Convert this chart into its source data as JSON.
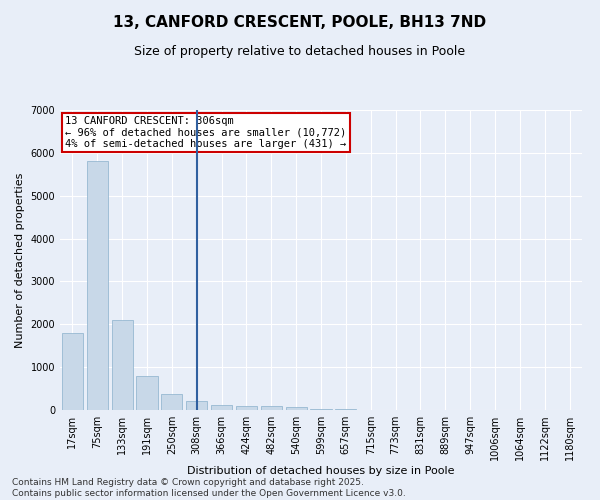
{
  "title": "13, CANFORD CRESCENT, POOLE, BH13 7ND",
  "subtitle": "Size of property relative to detached houses in Poole",
  "xlabel": "Distribution of detached houses by size in Poole",
  "ylabel": "Number of detached properties",
  "categories": [
    "17sqm",
    "75sqm",
    "133sqm",
    "191sqm",
    "250sqm",
    "308sqm",
    "366sqm",
    "424sqm",
    "482sqm",
    "540sqm",
    "599sqm",
    "657sqm",
    "715sqm",
    "773sqm",
    "831sqm",
    "889sqm",
    "947sqm",
    "1006sqm",
    "1064sqm",
    "1122sqm",
    "1180sqm"
  ],
  "values": [
    1800,
    5800,
    2100,
    800,
    370,
    200,
    120,
    100,
    90,
    60,
    30,
    20,
    10,
    8,
    5,
    4,
    3,
    2,
    2,
    1,
    1
  ],
  "bar_color": "#c8d8e8",
  "bar_edge_color": "#8ab0cc",
  "highlight_index": 5,
  "highlight_line_color": "#3060a0",
  "annotation_title": "13 CANFORD CRESCENT: 306sqm",
  "annotation_line1": "← 96% of detached houses are smaller (10,772)",
  "annotation_line2": "4% of semi-detached houses are larger (431) →",
  "annotation_box_color": "#ffffff",
  "annotation_box_edge": "#cc0000",
  "ylim": [
    0,
    7000
  ],
  "yticks": [
    0,
    1000,
    2000,
    3000,
    4000,
    5000,
    6000,
    7000
  ],
  "bg_color": "#e8eef8",
  "grid_color": "#ffffff",
  "footer_line1": "Contains HM Land Registry data © Crown copyright and database right 2025.",
  "footer_line2": "Contains public sector information licensed under the Open Government Licence v3.0.",
  "title_fontsize": 11,
  "subtitle_fontsize": 9,
  "axis_label_fontsize": 8,
  "tick_fontsize": 7,
  "annotation_fontsize": 7.5,
  "footer_fontsize": 6.5
}
